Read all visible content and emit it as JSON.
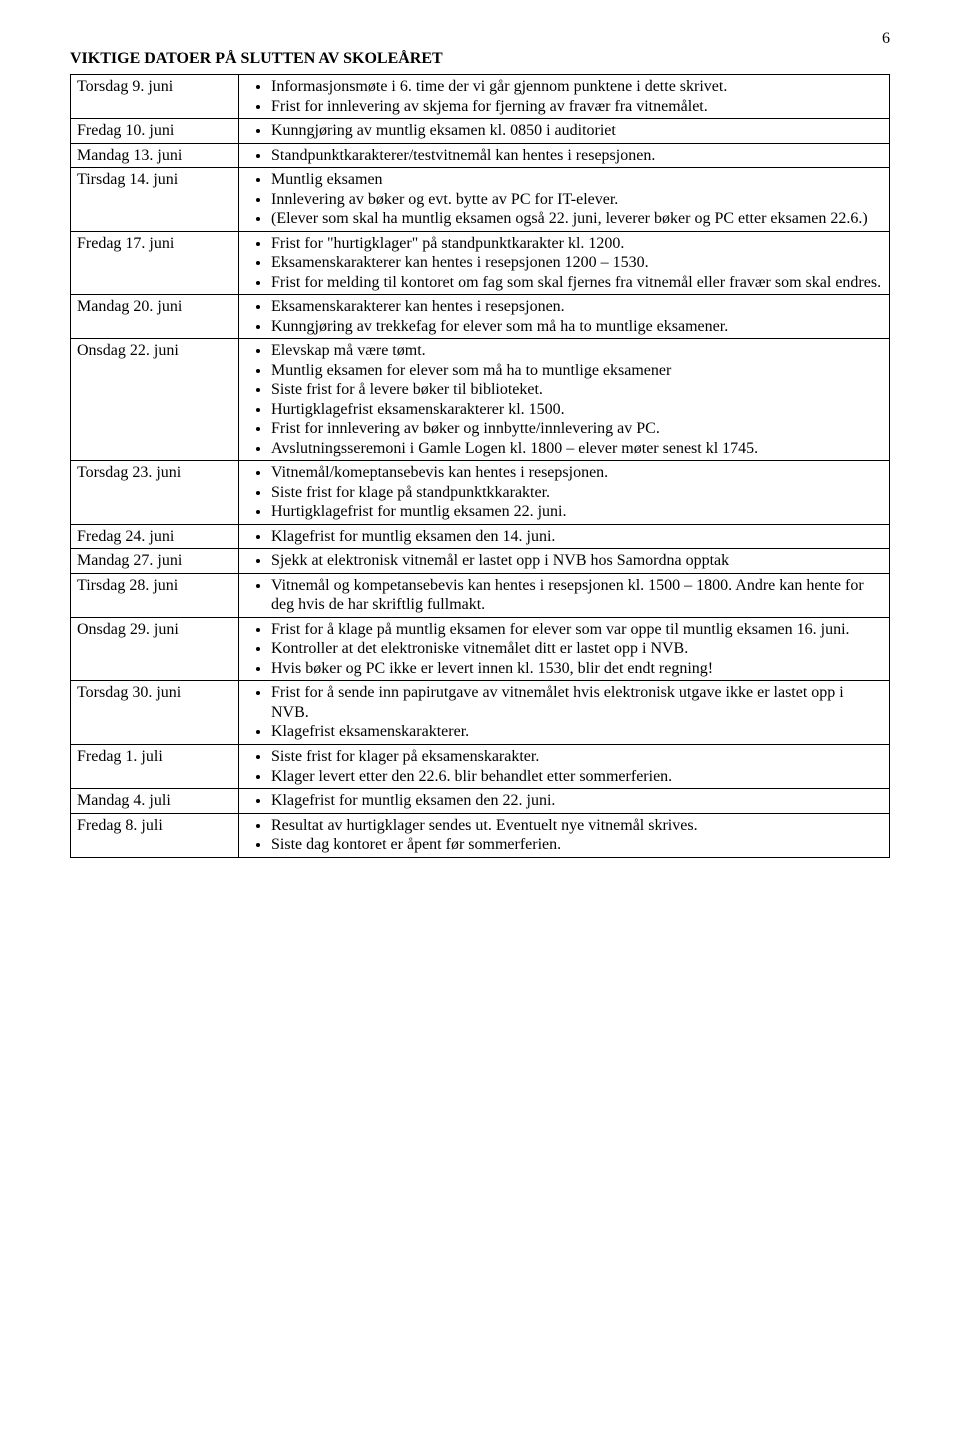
{
  "page_number": "6",
  "title": "VIKTIGE DATOER PÅ SLUTTEN AV SKOLEÅRET",
  "rows": [
    {
      "date": "Torsdag 9. juni",
      "items": [
        "Informasjonsmøte i 6. time der vi går gjennom punktene i dette skrivet.",
        "Frist for innlevering av skjema for fjerning av fravær fra vitnemålet."
      ]
    },
    {
      "date": "Fredag 10. juni",
      "items": [
        "Kunngjøring av muntlig eksamen kl. 0850 i auditoriet"
      ]
    },
    {
      "date": "Mandag 13. juni",
      "items": [
        "Standpunktkarakterer/testvitnemål kan hentes i resepsjonen."
      ]
    },
    {
      "date": "Tirsdag 14. juni",
      "items": [
        "Muntlig eksamen",
        "Innlevering av bøker og evt. bytte av PC for IT-elever.",
        "(Elever som skal ha muntlig eksamen også 22. juni, leverer bøker og PC etter eksamen 22.6.)"
      ]
    },
    {
      "date": "Fredag 17. juni",
      "items": [
        "Frist for \"hurtigklager\" på standpunktkarakter kl. 1200.",
        "Eksamenskarakterer kan hentes i resepsjonen 1200 – 1530.",
        "Frist for melding til kontoret om fag som skal fjernes fra vitnemål eller fravær som skal endres."
      ]
    },
    {
      "date": "Mandag 20. juni",
      "items": [
        "Eksamenskarakterer kan hentes i resepsjonen.",
        "Kunngjøring av trekkefag for elever som må ha to muntlige eksamener."
      ]
    },
    {
      "date": "Onsdag 22. juni",
      "items": [
        "Elevskap må være tømt.",
        "Muntlig eksamen for elever som må ha to muntlige eksamener",
        "Siste frist for å levere bøker til biblioteket.",
        "Hurtigklagefrist eksamenskarakterer kl. 1500.",
        "Frist for innlevering av bøker og innbytte/innlevering av PC.",
        "Avslutningsseremoni i Gamle Logen kl. 1800 – elever møter senest kl 1745."
      ]
    },
    {
      "date": "Torsdag 23. juni",
      "items": [
        "Vitnemål/komeptansebevis kan hentes i resepsjonen.",
        "Siste frist for klage på standpunktkkarakter.",
        "Hurtigklagefrist for muntlig eksamen 22. juni."
      ]
    },
    {
      "date": "Fredag 24. juni",
      "items": [
        "Klagefrist for muntlig eksamen den 14. juni."
      ]
    },
    {
      "date": "Mandag 27. juni",
      "items": [
        "Sjekk at elektronisk vitnemål er lastet opp i NVB hos Samordna opptak"
      ]
    },
    {
      "date": "Tirsdag 28. juni",
      "items": [
        "Vitnemål og kompetansebevis kan hentes i resepsjonen kl. 1500 – 1800. Andre kan hente for deg hvis de har skriftlig fullmakt."
      ]
    },
    {
      "date": "Onsdag 29. juni",
      "items": [
        "Frist for å klage på muntlig eksamen for elever som var oppe til muntlig eksamen 16. juni.",
        "Kontroller at det elektroniske vitnemålet ditt er lastet opp i NVB.",
        "Hvis bøker og PC ikke er levert innen kl. 1530, blir det endt regning!"
      ]
    },
    {
      "date": "Torsdag 30. juni",
      "items": [
        "Frist for å sende inn papirutgave av vitnemålet hvis elektronisk utgave ikke er lastet opp i NVB.",
        "Klagefrist eksamenskarakterer."
      ]
    },
    {
      "date": "Fredag 1. juli",
      "items": [
        "Siste frist for klager på eksamenskarakter.",
        "Klager levert etter den 22.6. blir behandlet etter sommerferien."
      ]
    },
    {
      "date": "Mandag 4. juli",
      "items": [
        "Klagefrist for muntlig eksamen den 22. juni."
      ]
    },
    {
      "date": "Fredag 8. juli",
      "items": [
        "Resultat av hurtigklager sendes ut. Eventuelt nye vitnemål skrives.",
        "Siste dag kontoret er åpent før sommerferien."
      ]
    }
  ]
}
